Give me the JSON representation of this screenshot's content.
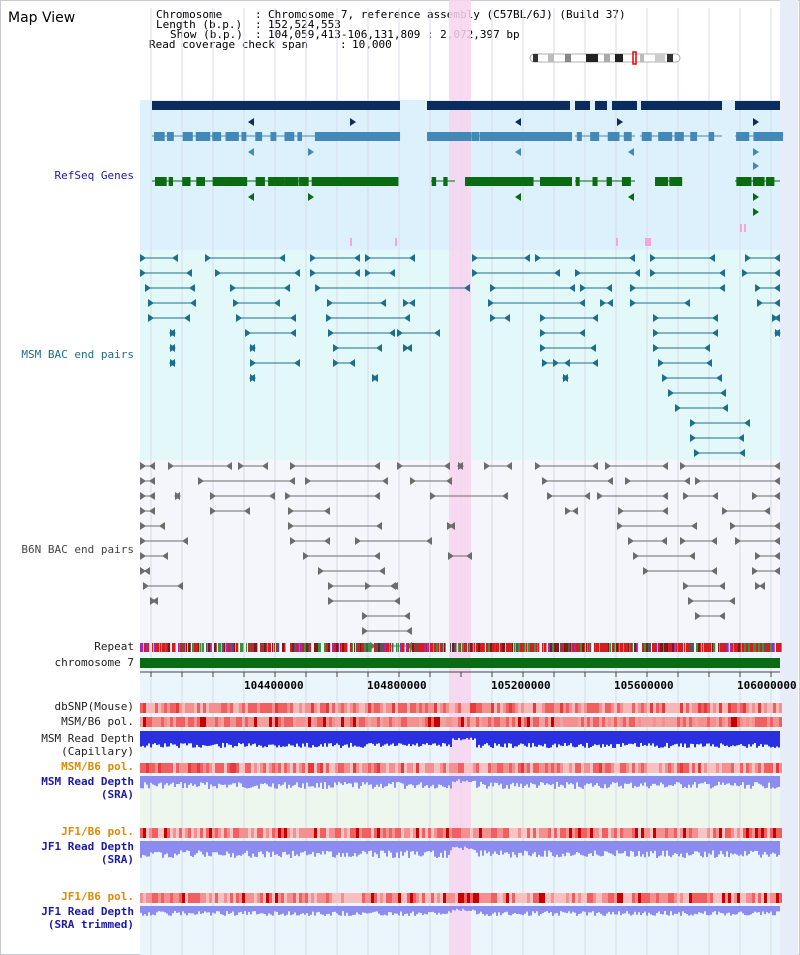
{
  "title": "Map View",
  "header": {
    "chromosome_key": "Chromosome",
    "chromosome_val": "Chromosome 7, reference assembly (C57BL/6J) (Build 37)",
    "length_key": "Length (b.p.)",
    "length_val": "152,524,553",
    "show_key": "Show (b.p.)",
    "show_val": "104,059,413-106,131,809 : 2,072,397 bp",
    "span_key": "Read coverage check span",
    "span_val": "10,000"
  },
  "tracks": {
    "refseq": "RefSeq Genes",
    "msm_bac": "MSM BAC end pairs",
    "b6n_bac": "B6N BAC end pairs",
    "repeat": "Repeat",
    "chromosome": "chromosome 7",
    "dbsnp": "dbSNP(Mouse)",
    "msm_b6_pol_1": "MSM/B6 pol.",
    "msm_read_depth_cap_1": "MSM Read Depth",
    "msm_read_depth_cap_2": "(Capillary)",
    "msm_b6_pol_2": "MSM/B6 pol.",
    "msm_read_depth_sra_1": "MSM Read Depth",
    "msm_read_depth_sra_2": "(SRA)",
    "jf1_b6_pol_1": "JF1/B6 pol.",
    "jf1_read_depth_sra_1": "JF1 Read Depth",
    "jf1_read_depth_sra_2": "(SRA)",
    "jf1_b6_pol_2": "JF1/B6 pol.",
    "jf1_read_depth_trim_1": "JF1 Read Depth",
    "jf1_read_depth_trim_2": "(SRA trimmed)"
  },
  "axis": {
    "ticks": [
      "104400000",
      "104800000",
      "105200000",
      "105600000",
      "106000000"
    ]
  },
  "colors": {
    "refseq_bg": "#dcf1fb",
    "msm_bg": "#e3f8f8",
    "b6n_bg": "#f4f6fc",
    "highlight": "#f7d3ef",
    "gene_dark": "#0b2d5e",
    "gene_mid": "#4389b8",
    "gene_green": "#0a6b12",
    "msm_line": "#1e6e8e",
    "b6n_line": "#6c6c6c",
    "chromosome_bar": "#0a6b12",
    "depth_blue": "#2a2fe0",
    "depth_light": "#8c8cf0"
  }
}
